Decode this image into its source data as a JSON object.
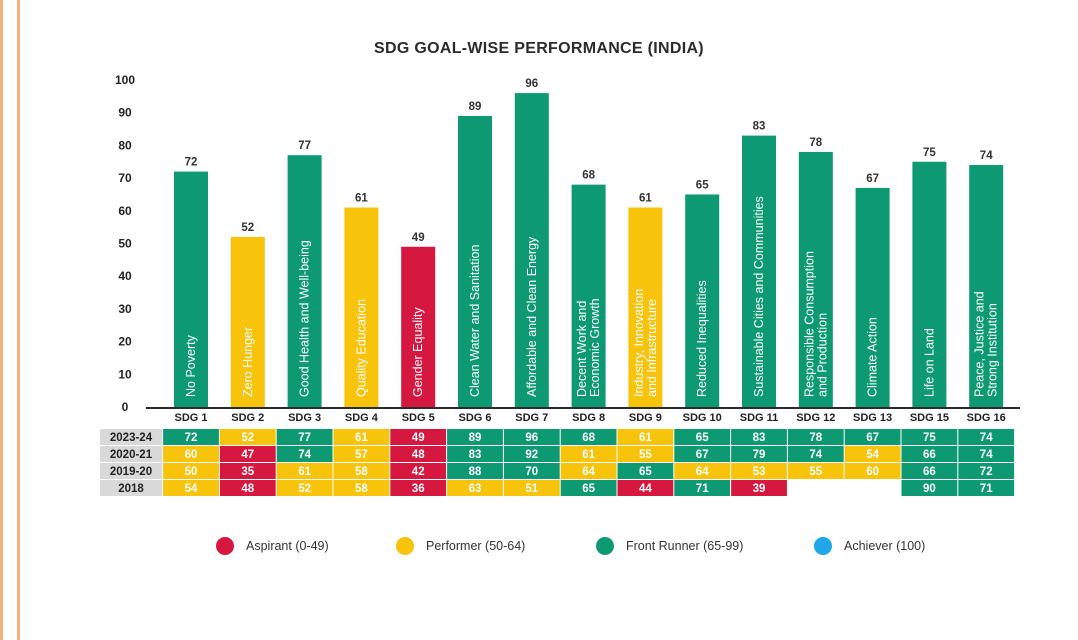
{
  "colors": {
    "aspirant": "#d6173f",
    "performer": "#f7c30b",
    "front_runner": "#0d9a73",
    "achiever": "#1ea6e6",
    "year_label_bg": "#d9d9d9"
  },
  "chart_data": {
    "type": "bar",
    "title": "SDG GOAL-WISE PERFORMANCE (INDIA)",
    "ylim": [
      0,
      100
    ],
    "yticks": [
      "0",
      "10",
      "20",
      "30",
      "40",
      "50",
      "60",
      "70",
      "80",
      "90",
      "100"
    ],
    "categories": [
      "SDG 1",
      "SDG 2",
      "SDG 3",
      "SDG 4",
      "SDG 5",
      "SDG 6",
      "SDG 7",
      "SDG 8",
      "SDG 9",
      "SDG 10",
      "SDG 11",
      "SDG 12",
      "SDG 13",
      "SDG 15",
      "SDG 16"
    ],
    "goal_names": [
      [
        "No Poverty"
      ],
      [
        "Zero Hunger"
      ],
      [
        "Good Health and Well-being"
      ],
      [
        "Quality Education"
      ],
      [
        "Gender Equality"
      ],
      [
        "Clean Water and Sanitation"
      ],
      [
        "Affordable and Clean Energy"
      ],
      [
        "Decent Work and",
        "Economic Growth"
      ],
      [
        "Industry, Innovation",
        "and Infrastructure"
      ],
      [
        "Reduced Inequalities"
      ],
      [
        "Sustainable Cities and Communities"
      ],
      [
        "Responsible Consumption",
        "and Production"
      ],
      [
        "Climate Action"
      ],
      [
        "Life on Land"
      ],
      [
        "Peace, Justice and",
        "Strong Institution"
      ]
    ],
    "values": [
      72,
      52,
      77,
      61,
      49,
      89,
      96,
      68,
      61,
      65,
      83,
      78,
      67,
      75,
      74
    ],
    "score_table": {
      "years": [
        "2023-24",
        "2020-21",
        "2019-20",
        "2018"
      ],
      "rows": [
        [
          72,
          52,
          77,
          61,
          49,
          89,
          96,
          68,
          61,
          65,
          83,
          78,
          67,
          75,
          74
        ],
        [
          60,
          47,
          74,
          57,
          48,
          83,
          92,
          61,
          55,
          67,
          79,
          74,
          54,
          66,
          74
        ],
        [
          50,
          35,
          61,
          58,
          42,
          88,
          70,
          64,
          65,
          64,
          53,
          55,
          60,
          66,
          72
        ],
        [
          54,
          48,
          52,
          58,
          36,
          63,
          51,
          65,
          44,
          71,
          39,
          null,
          null,
          90,
          71
        ]
      ]
    },
    "legend": [
      {
        "label": "Aspirant (0-49)",
        "color": "#d6173f"
      },
      {
        "label": "Performer (50-64)",
        "color": "#f7c30b"
      },
      {
        "label": "Front Runner (65-99)",
        "color": "#0d9a73"
      },
      {
        "label": "Achiever (100)",
        "color": "#1ea6e6"
      }
    ]
  }
}
